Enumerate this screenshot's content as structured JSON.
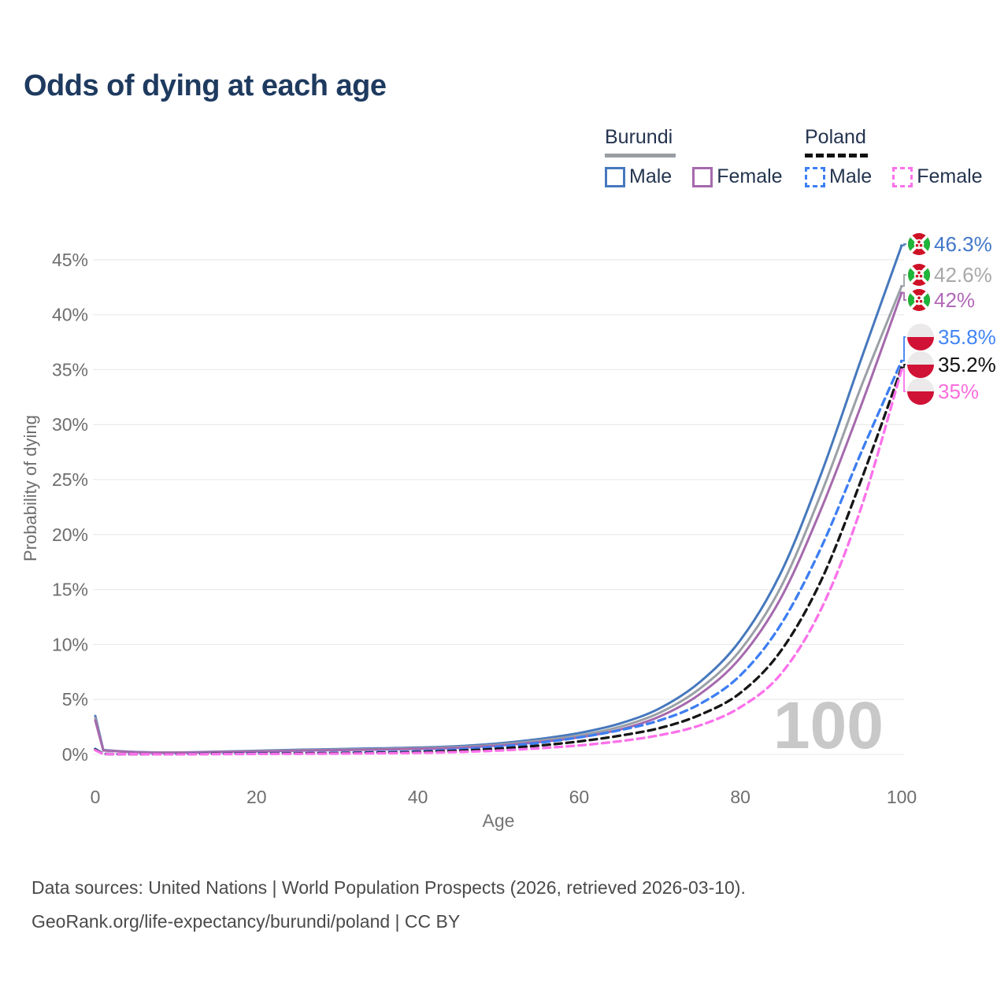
{
  "title": "Odds of dying at each age",
  "legend": {
    "groups": [
      {
        "name": "Burundi",
        "line_style": "solid",
        "underline_color": "#9a9ea3",
        "entries": [
          {
            "label": "Male",
            "color": "#4678bd"
          },
          {
            "label": "Female",
            "color": "#a569ad"
          }
        ]
      },
      {
        "name": "Poland",
        "line_style": "dashed",
        "underline_color": "#111111",
        "entries": [
          {
            "label": "Male",
            "color": "#3d7ef2"
          },
          {
            "label": "Female",
            "color": "#fb71ea"
          }
        ]
      }
    ]
  },
  "chart_data": {
    "type": "line",
    "title": "Odds of dying at each age",
    "xlabel": "Age",
    "ylabel": "Probability of dying",
    "xlim": [
      0,
      100
    ],
    "ylim": [
      0,
      47
    ],
    "grid": "horizontal",
    "legend_position": "top-right",
    "watermark": "100",
    "x": [
      0,
      1,
      5,
      10,
      15,
      20,
      25,
      30,
      35,
      40,
      45,
      50,
      55,
      60,
      65,
      70,
      75,
      80,
      85,
      90,
      95,
      100
    ],
    "xticks": [
      0,
      20,
      40,
      60,
      80,
      100
    ],
    "ytick_values": [
      0,
      5,
      10,
      15,
      20,
      25,
      30,
      35,
      40,
      45
    ],
    "ytick_labels": [
      "0%",
      "5%",
      "10%",
      "15%",
      "20%",
      "25%",
      "30%",
      "35%",
      "40%",
      "45%"
    ],
    "series": [
      {
        "name": "Burundi Male",
        "country": "Burundi",
        "sex": "Male",
        "flag": "burundi",
        "color": "#4678bd",
        "dash": "solid",
        "end_label": "46.3%",
        "end_label_color": "#4377c9",
        "values": [
          3.5,
          0.4,
          0.22,
          0.18,
          0.25,
          0.33,
          0.42,
          0.48,
          0.55,
          0.62,
          0.75,
          1.0,
          1.4,
          1.95,
          2.8,
          4.2,
          6.6,
          10.4,
          16.5,
          25.5,
          36.0,
          46.3
        ]
      },
      {
        "name": "Burundi Both sexes",
        "country": "Burundi",
        "sex": "Both",
        "flag": "burundi",
        "color": "#9aa0a5",
        "dash": "solid",
        "end_label": "42.6%",
        "end_label_color": "#a8a8a8",
        "values": [
          3.3,
          0.38,
          0.21,
          0.17,
          0.23,
          0.3,
          0.38,
          0.43,
          0.49,
          0.56,
          0.67,
          0.89,
          1.25,
          1.72,
          2.5,
          3.8,
          6.0,
          9.5,
          15.2,
          23.7,
          33.5,
          42.6
        ]
      },
      {
        "name": "Burundi Female",
        "country": "Burundi",
        "sex": "Female",
        "flag": "burundi",
        "color": "#a569ad",
        "dash": "solid",
        "end_label": "42%",
        "end_label_color": "#b168b8",
        "values": [
          3.1,
          0.36,
          0.2,
          0.16,
          0.21,
          0.27,
          0.34,
          0.39,
          0.44,
          0.5,
          0.6,
          0.8,
          1.12,
          1.55,
          2.25,
          3.45,
          5.5,
          8.8,
          14.2,
          22.3,
          31.8,
          42.0
        ]
      },
      {
        "name": "Poland Male",
        "country": "Poland",
        "sex": "Male",
        "flag": "poland",
        "color": "#3d7ef2",
        "dash": "dashed",
        "end_label": "35.8%",
        "end_label_color": "#4285f4",
        "values": [
          0.5,
          0.04,
          0.02,
          0.02,
          0.06,
          0.1,
          0.12,
          0.15,
          0.2,
          0.28,
          0.45,
          0.7,
          1.05,
          1.55,
          2.2,
          3.1,
          4.6,
          7.2,
          11.8,
          18.8,
          27.5,
          35.8
        ]
      },
      {
        "name": "Poland Both sexes",
        "country": "Poland",
        "sex": "Both",
        "flag": "poland",
        "color": "#161616",
        "dash": "dashed",
        "end_label": "35.2%",
        "end_label_color": "#111111",
        "values": [
          0.44,
          0.04,
          0.02,
          0.02,
          0.05,
          0.07,
          0.09,
          0.11,
          0.15,
          0.21,
          0.33,
          0.52,
          0.8,
          1.18,
          1.7,
          2.4,
          3.6,
          5.6,
          9.4,
          15.8,
          25.0,
          35.2
        ]
      },
      {
        "name": "Poland Female",
        "country": "Poland",
        "sex": "Female",
        "flag": "poland",
        "color": "#fb71ea",
        "dash": "dashed",
        "end_label": "35%",
        "end_label_color": "#fb6ede",
        "values": [
          0.38,
          0.03,
          0.02,
          0.01,
          0.03,
          0.04,
          0.06,
          0.07,
          0.1,
          0.14,
          0.22,
          0.35,
          0.56,
          0.82,
          1.2,
          1.75,
          2.65,
          4.3,
          7.3,
          13.2,
          22.5,
          35.0
        ]
      }
    ],
    "colors": {
      "grid": "#ececec",
      "tick_text": "#6e6e6e",
      "axis_title": "#757575",
      "watermark": "#c8c8c8",
      "burundi_flag_red": "#ce1126",
      "burundi_flag_green": "#1eb53a",
      "poland_flag_red": "#d01236",
      "poland_flag_white": "#ebe9e9"
    }
  },
  "footer": {
    "line1": "Data sources: United Nations | World Population Prospects (2026, retrieved 2026-03-10).",
    "line2": "GeoRank.org/life-expectancy/burundi/poland | CC BY"
  }
}
